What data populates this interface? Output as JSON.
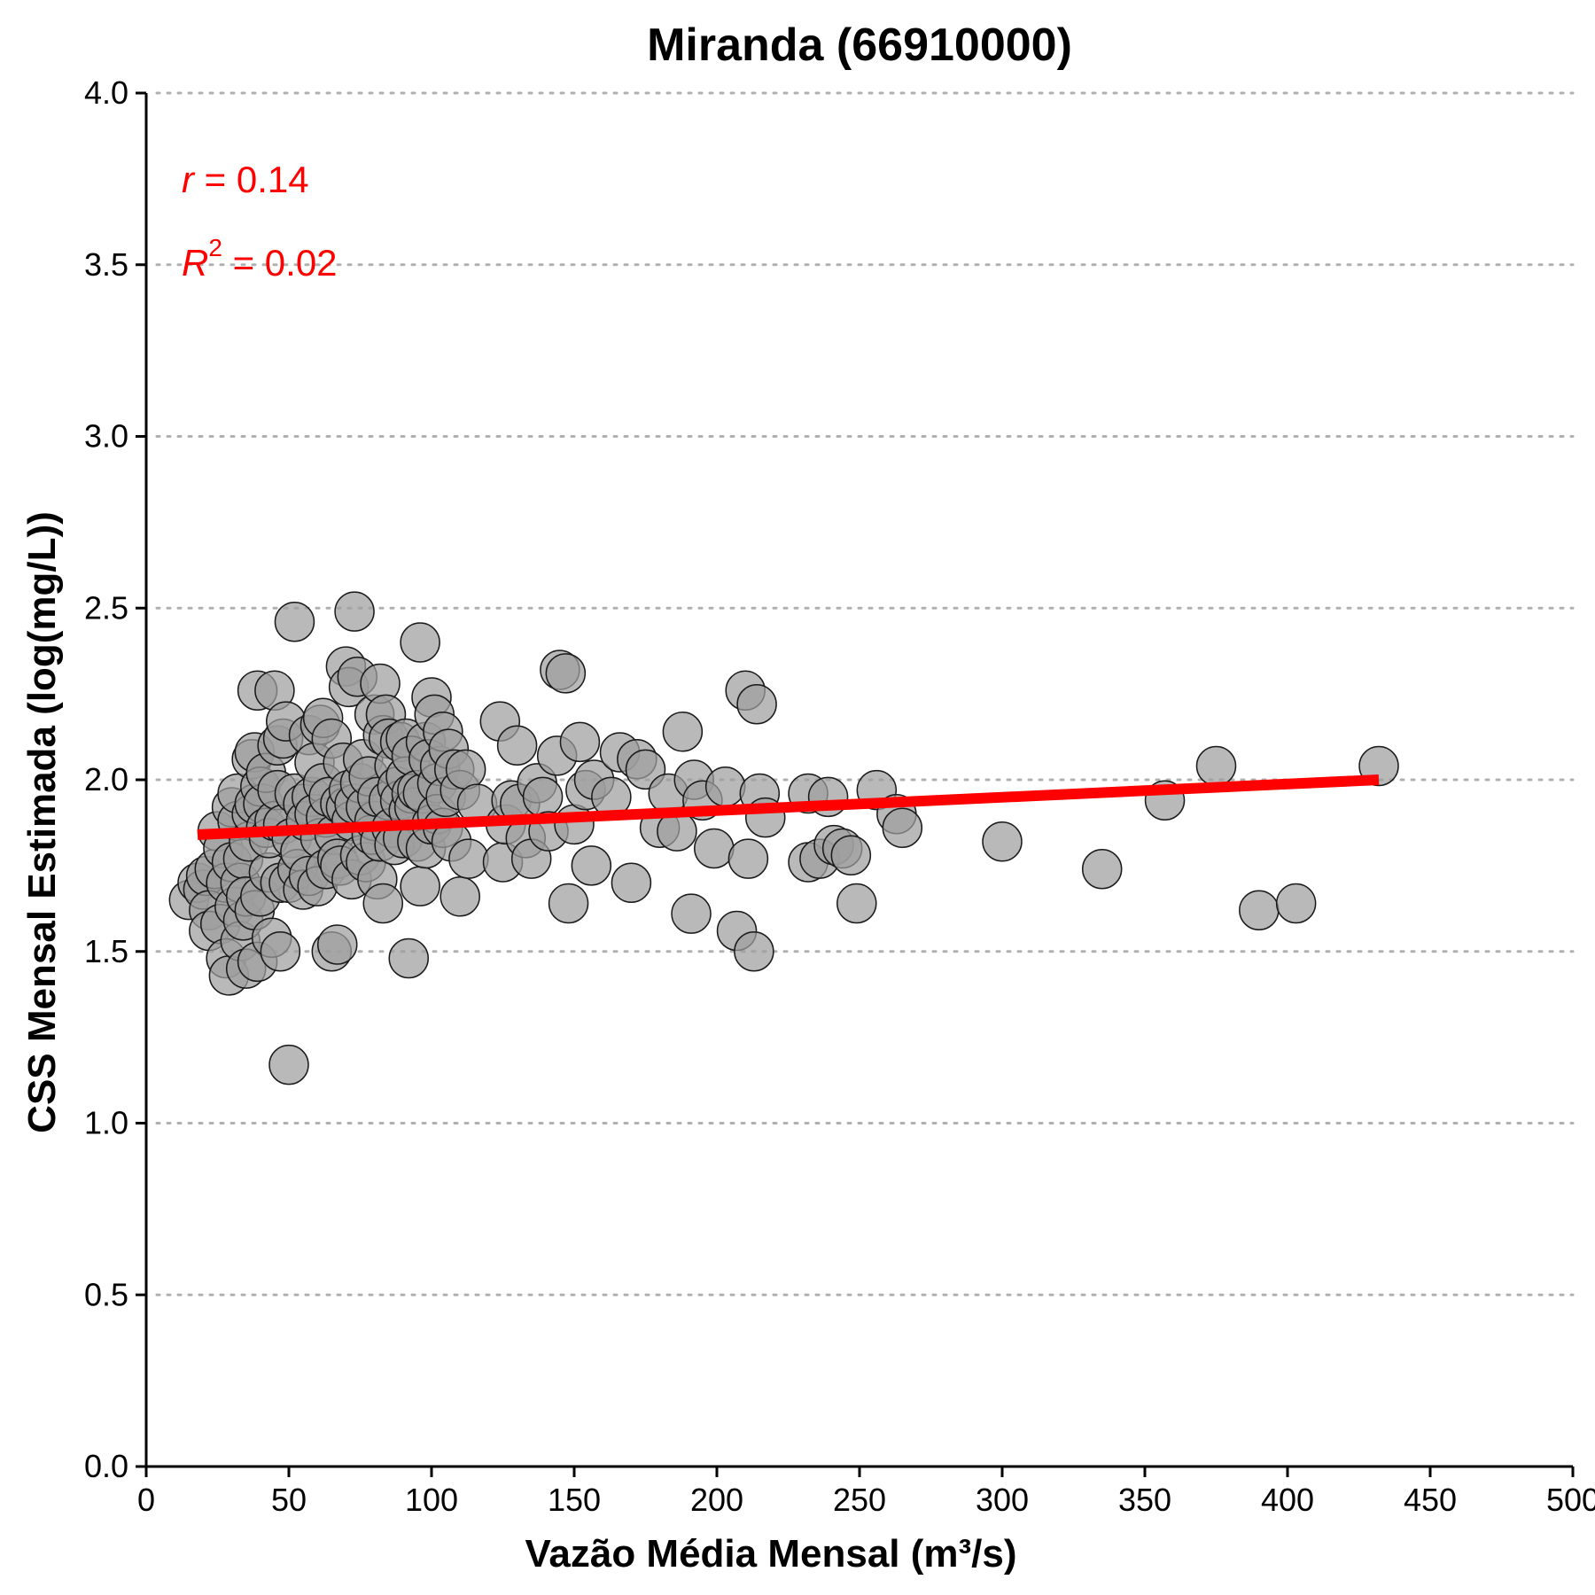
{
  "chart_data": {
    "type": "scatter",
    "title": "Miranda (66910000)",
    "xlabel": "Vazão Média Mensal (m³/s)",
    "ylabel": "CSS Mensal Estimada (log(mg/L))",
    "xlim": [
      0,
      500
    ],
    "ylim": [
      0,
      4
    ],
    "xticks": [
      "0",
      "50",
      "100",
      "150",
      "200",
      "250",
      "300",
      "350",
      "400",
      "450",
      "500"
    ],
    "yticks": [
      "0.0",
      "0.5",
      "1.0",
      "1.5",
      "2.0",
      "2.5",
      "3.0",
      "3.5",
      "4.0"
    ],
    "grid": "horizontal dotted",
    "annotations": {
      "r_symbol": "r",
      "r_text": " = 0.14",
      "r2_symbol": "R",
      "r2_exp": "2",
      "r2_text": " = 0.02",
      "color": "#ff0000"
    },
    "fit_line": {
      "x": [
        18,
        432
      ],
      "y": [
        1.84,
        2.0
      ],
      "color": "#ff0000"
    },
    "point_color": "#9e9e9e",
    "points": [
      [
        15,
        1.65
      ],
      [
        18,
        1.7
      ],
      [
        20,
        1.68
      ],
      [
        21,
        1.72
      ],
      [
        22,
        1.62
      ],
      [
        22,
        1.56
      ],
      [
        24,
        1.74
      ],
      [
        25,
        1.85
      ],
      [
        26,
        1.58
      ],
      [
        27,
        1.8
      ],
      [
        28,
        1.48
      ],
      [
        28,
        1.7
      ],
      [
        29,
        1.43
      ],
      [
        30,
        1.92
      ],
      [
        30,
        1.76
      ],
      [
        31,
        1.63
      ],
      [
        32,
        1.88
      ],
      [
        32,
        1.96
      ],
      [
        33,
        1.53
      ],
      [
        33,
        1.7
      ],
      [
        34,
        1.77
      ],
      [
        34,
        1.59
      ],
      [
        35,
        1.45
      ],
      [
        35,
        1.66
      ],
      [
        36,
        1.82
      ],
      [
        37,
        1.9
      ],
      [
        37,
        2.06
      ],
      [
        38,
        2.08
      ],
      [
        38,
        1.62
      ],
      [
        38,
        1.93
      ],
      [
        39,
        1.47
      ],
      [
        39,
        2.26
      ],
      [
        40,
        1.66
      ],
      [
        40,
        1.98
      ],
      [
        41,
        1.93
      ],
      [
        42,
        1.86
      ],
      [
        42,
        2.02
      ],
      [
        43,
        1.73
      ],
      [
        43,
        1.83
      ],
      [
        44,
        1.54
      ],
      [
        45,
        1.88
      ],
      [
        45,
        2.26
      ],
      [
        46,
        1.97
      ],
      [
        46,
        2.1
      ],
      [
        47,
        1.5
      ],
      [
        47,
        1.7
      ],
      [
        48,
        1.87
      ],
      [
        48,
        2.12
      ],
      [
        49,
        2.17
      ],
      [
        50,
        1.7
      ],
      [
        50,
        1.17
      ],
      [
        51,
        1.83
      ],
      [
        52,
        2.46
      ],
      [
        52,
        1.96
      ],
      [
        53,
        1.74
      ],
      [
        54,
        1.79
      ],
      [
        55,
        1.93
      ],
      [
        55,
        1.68
      ],
      [
        56,
        1.88
      ],
      [
        57,
        2.13
      ],
      [
        57,
        1.72
      ],
      [
        58,
        1.95
      ],
      [
        59,
        2.05
      ],
      [
        59,
        1.9
      ],
      [
        60,
        1.69
      ],
      [
        61,
        2.16
      ],
      [
        61,
        1.83
      ],
      [
        62,
        2.18
      ],
      [
        62,
        1.99
      ],
      [
        63,
        1.89
      ],
      [
        63,
        1.74
      ],
      [
        64,
        1.95
      ],
      [
        65,
        2.12
      ],
      [
        65,
        1.5
      ],
      [
        66,
        1.84
      ],
      [
        67,
        1.52
      ],
      [
        67,
        1.77
      ],
      [
        68,
        1.93
      ],
      [
        68,
        1.75
      ],
      [
        69,
        2.05
      ],
      [
        70,
        2.33
      ],
      [
        70,
        1.92
      ],
      [
        71,
        1.97
      ],
      [
        71,
        2.27
      ],
      [
        72,
        1.88
      ],
      [
        72,
        1.71
      ],
      [
        73,
        2.49
      ],
      [
        73,
        1.93
      ],
      [
        74,
        2.3
      ],
      [
        75,
        1.99
      ],
      [
        75,
        1.78
      ],
      [
        76,
        2.06
      ],
      [
        77,
        1.76
      ],
      [
        77,
        1.92
      ],
      [
        78,
        2.01
      ],
      [
        79,
        1.84
      ],
      [
        80,
        1.88
      ],
      [
        80,
        2.19
      ],
      [
        81,
        1.71
      ],
      [
        81,
        1.95
      ],
      [
        82,
        2.28
      ],
      [
        82,
        1.82
      ],
      [
        83,
        2.13
      ],
      [
        83,
        1.64
      ],
      [
        84,
        2.19
      ],
      [
        85,
        2.12
      ],
      [
        85,
        1.94
      ],
      [
        86,
        1.86
      ],
      [
        87,
        2.04
      ],
      [
        87,
        1.81
      ],
      [
        88,
        1.98
      ],
      [
        89,
        2.11
      ],
      [
        89,
        1.94
      ],
      [
        90,
        1.83
      ],
      [
        91,
        2.12
      ],
      [
        91,
        2.01
      ],
      [
        92,
        1.91
      ],
      [
        92,
        1.48
      ],
      [
        93,
        2.07
      ],
      [
        93,
        1.96
      ],
      [
        94,
        1.92
      ],
      [
        95,
        1.97
      ],
      [
        95,
        1.82
      ],
      [
        96,
        2.4
      ],
      [
        96,
        1.69
      ],
      [
        97,
        1.96
      ],
      [
        98,
        1.8
      ],
      [
        98,
        2.11
      ],
      [
        99,
        2.06
      ],
      [
        100,
        1.87
      ],
      [
        100,
        2.24
      ],
      [
        101,
        2.19
      ],
      [
        102,
        1.99
      ],
      [
        102,
        1.9
      ],
      [
        103,
        2.04
      ],
      [
        104,
        2.14
      ],
      [
        104,
        1.86
      ],
      [
        105,
        1.95
      ],
      [
        106,
        2.09
      ],
      [
        107,
        1.82
      ],
      [
        108,
        2.03
      ],
      [
        110,
        1.66
      ],
      [
        110,
        1.97
      ],
      [
        112,
        2.03
      ],
      [
        113,
        1.77
      ],
      [
        116,
        1.93
      ],
      [
        124,
        2.17
      ],
      [
        125,
        1.76
      ],
      [
        126,
        1.87
      ],
      [
        128,
        1.94
      ],
      [
        130,
        2.1
      ],
      [
        131,
        1.93
      ],
      [
        133,
        1.83
      ],
      [
        135,
        1.77
      ],
      [
        137,
        1.99
      ],
      [
        139,
        1.95
      ],
      [
        141,
        1.85
      ],
      [
        144,
        2.07
      ],
      [
        145,
        2.32
      ],
      [
        147,
        2.31
      ],
      [
        148,
        1.64
      ],
      [
        150,
        1.87
      ],
      [
        152,
        2.11
      ],
      [
        154,
        1.97
      ],
      [
        156,
        1.75
      ],
      [
        157,
        2.0
      ],
      [
        163,
        1.95
      ],
      [
        166,
        2.08
      ],
      [
        170,
        1.7
      ],
      [
        172,
        2.06
      ],
      [
        175,
        2.03
      ],
      [
        180,
        1.86
      ],
      [
        183,
        1.96
      ],
      [
        186,
        1.85
      ],
      [
        188,
        2.14
      ],
      [
        191,
        1.61
      ],
      [
        192,
        2.0
      ],
      [
        195,
        1.94
      ],
      [
        199,
        1.8
      ],
      [
        203,
        1.98
      ],
      [
        207,
        1.56
      ],
      [
        210,
        2.26
      ],
      [
        211,
        1.77
      ],
      [
        213,
        1.5
      ],
      [
        214,
        2.22
      ],
      [
        215,
        1.96
      ],
      [
        217,
        1.89
      ],
      [
        232,
        1.96
      ],
      [
        232,
        1.76
      ],
      [
        236,
        1.77
      ],
      [
        239,
        1.95
      ],
      [
        241,
        1.81
      ],
      [
        244,
        1.8
      ],
      [
        247,
        1.78
      ],
      [
        249,
        1.64
      ],
      [
        256,
        1.97
      ],
      [
        263,
        1.9
      ],
      [
        265,
        1.86
      ],
      [
        300,
        1.82
      ],
      [
        335,
        1.74
      ],
      [
        357,
        1.94
      ],
      [
        375,
        2.04
      ],
      [
        390,
        1.62
      ],
      [
        403,
        1.64
      ],
      [
        432,
        2.04
      ]
    ]
  }
}
